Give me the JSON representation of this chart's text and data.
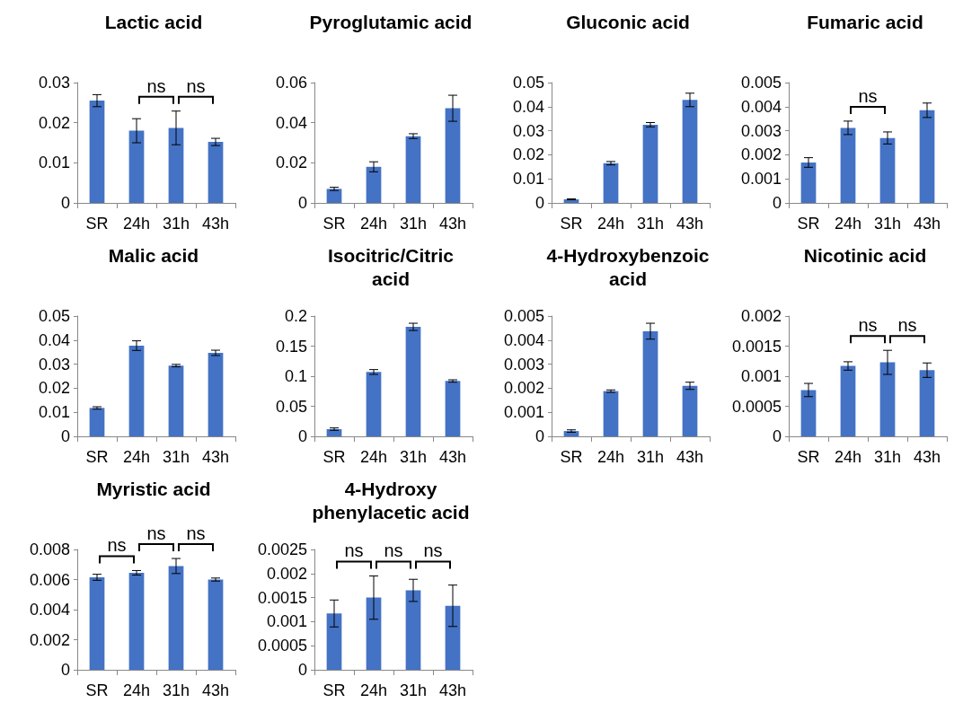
{
  "chart_data": [
    {
      "type": "bar",
      "title": "Lactic acid",
      "categories": [
        "SR",
        "24h",
        "31h",
        "43h"
      ],
      "values": [
        0.0255,
        0.018,
        0.0187,
        0.0152
      ],
      "errors": [
        0.0015,
        0.003,
        0.0042,
        0.0009
      ],
      "color": "#4472c4",
      "ylim": [
        0,
        0.03
      ],
      "yticks": [
        0,
        0.01,
        0.02,
        0.03
      ],
      "grid": false,
      "annotations": [
        "ns",
        "ns"
      ]
    },
    {
      "type": "bar",
      "title": "Pyroglutamic acid",
      "categories": [
        "SR",
        "24h",
        "31h",
        "43h"
      ],
      "values": [
        0.007,
        0.018,
        0.0333,
        0.0472
      ],
      "errors": [
        0.0008,
        0.0025,
        0.0012,
        0.0065
      ],
      "color": "#4472c4",
      "ylim": [
        0,
        0.06
      ],
      "yticks": [
        0,
        0.02,
        0.04,
        0.06
      ],
      "grid": false
    },
    {
      "type": "bar",
      "title": "Gluconic acid",
      "categories": [
        "SR",
        "24h",
        "31h",
        "43h"
      ],
      "values": [
        0.0015,
        0.0165,
        0.0325,
        0.0428
      ],
      "errors": [
        0.0002,
        0.0007,
        0.0009,
        0.0028
      ],
      "color": "#4472c4",
      "ylim": [
        0,
        0.05
      ],
      "yticks": [
        0,
        0.01,
        0.02,
        0.03,
        0.04,
        0.05
      ],
      "grid": false
    },
    {
      "type": "bar",
      "title": "Fumaric acid",
      "categories": [
        "SR",
        "24h",
        "31h",
        "43h"
      ],
      "values": [
        0.00168,
        0.00312,
        0.0027,
        0.00385
      ],
      "errors": [
        0.0002,
        0.00028,
        0.00025,
        0.0003
      ],
      "color": "#4472c4",
      "ylim": [
        0,
        0.005
      ],
      "yticks": [
        0,
        0.001,
        0.002,
        0.003,
        0.004,
        0.005
      ],
      "grid": false,
      "annotations": [
        "ns"
      ]
    },
    {
      "type": "bar",
      "title": "Malic acid",
      "categories": [
        "SR",
        "24h",
        "31h",
        "43h"
      ],
      "values": [
        0.0118,
        0.0377,
        0.0294,
        0.0347
      ],
      "errors": [
        0.0005,
        0.002,
        0.0005,
        0.0011
      ],
      "color": "#4472c4",
      "ylim": [
        0,
        0.05
      ],
      "yticks": [
        0,
        0.01,
        0.02,
        0.03,
        0.04,
        0.05
      ],
      "grid": false
    },
    {
      "type": "bar",
      "title": "Isocitric/Citric acid",
      "categories": [
        "SR",
        "24h",
        "31h",
        "43h"
      ],
      "values": [
        0.012,
        0.107,
        0.182,
        0.092
      ],
      "errors": [
        0.002,
        0.004,
        0.006,
        0.002
      ],
      "color": "#4472c4",
      "ylim": [
        0,
        0.2
      ],
      "yticks": [
        0,
        0.05,
        0.1,
        0.15,
        0.2
      ],
      "grid": false
    },
    {
      "type": "bar",
      "title": "4-Hydroxybenzoic acid",
      "categories": [
        "SR",
        "24h",
        "31h",
        "43h"
      ],
      "values": [
        0.00022,
        0.00188,
        0.00437,
        0.0021
      ],
      "errors": [
        5e-05,
        5e-05,
        0.00033,
        0.00015
      ],
      "color": "#4472c4",
      "ylim": [
        0,
        0.005
      ],
      "yticks": [
        0,
        0.001,
        0.002,
        0.003,
        0.004,
        0.005
      ],
      "grid": false
    },
    {
      "type": "bar",
      "title": "Nicotinic acid",
      "categories": [
        "SR",
        "24h",
        "31h",
        "43h"
      ],
      "values": [
        0.00077,
        0.00117,
        0.00123,
        0.0011
      ],
      "errors": [
        0.00011,
        7e-05,
        0.0002,
        0.00012
      ],
      "color": "#4472c4",
      "ylim": [
        0,
        0.002
      ],
      "yticks": [
        0,
        0.0005,
        0.001,
        0.0015,
        0.002
      ],
      "grid": false,
      "annotations": [
        "ns",
        "ns"
      ]
    },
    {
      "type": "bar",
      "title": "Myristic acid",
      "categories": [
        "SR",
        "24h",
        "31h",
        "43h"
      ],
      "values": [
        0.00615,
        0.00645,
        0.0069,
        0.006
      ],
      "errors": [
        0.0002,
        0.00015,
        0.0005,
        0.0001
      ],
      "color": "#4472c4",
      "ylim": [
        0,
        0.008
      ],
      "yticks": [
        0,
        0.002,
        0.004,
        0.006,
        0.008
      ],
      "grid": false,
      "annotations": [
        "ns",
        "ns",
        "ns"
      ]
    },
    {
      "type": "bar",
      "title": "4-Hydroxy phenylacetic acid",
      "categories": [
        "SR",
        "24h",
        "31h",
        "43h"
      ],
      "values": [
        0.00117,
        0.0015,
        0.00165,
        0.00133
      ],
      "errors": [
        0.00028,
        0.00045,
        0.00023,
        0.00043
      ],
      "color": "#4472c4",
      "ylim": [
        0,
        0.0025
      ],
      "yticks": [
        0,
        0.0005,
        0.001,
        0.0015,
        0.002,
        0.0025
      ],
      "grid": false,
      "annotations": [
        "ns",
        "ns",
        "ns"
      ]
    }
  ]
}
